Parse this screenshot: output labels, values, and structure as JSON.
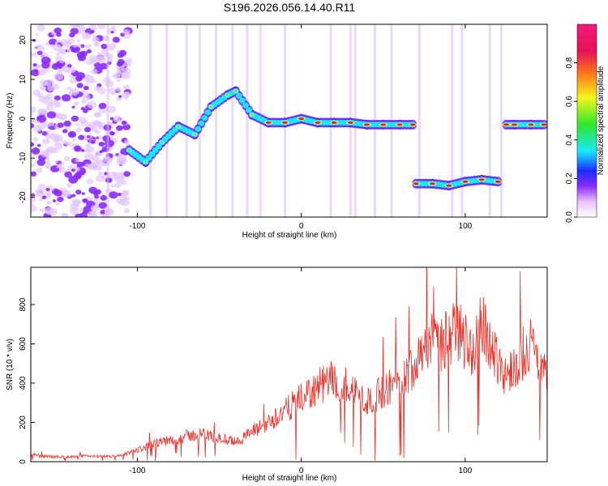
{
  "title": "S196.2026.056.14.40.R11",
  "colors": {
    "snr_line": "#e8322b",
    "colormap": [
      "#ffffff",
      "#e9c2ff",
      "#8a2bff",
      "#1a2cff",
      "#18e8ff",
      "#2fe82a",
      "#f5f51a",
      "#ff7a1a",
      "#e5125a",
      "#f01a7a"
    ]
  },
  "chart_data": [
    {
      "type": "heatmap",
      "panel": "spectrogram",
      "xlabel": "Height of straight line (km)",
      "ylabel": "Frequency (Hz)",
      "xlim": [
        -165,
        150
      ],
      "ylim": [
        -25,
        24
      ],
      "xticks": [
        -100,
        0,
        100
      ],
      "yticks": [
        -20,
        -10,
        0,
        10,
        20
      ],
      "colorbar": {
        "label": "Normalized spectral amplitude",
        "range": [
          0,
          1
        ],
        "ticks": [
          0.0,
          0.2,
          0.4,
          0.6,
          0.8
        ]
      },
      "ridge": {
        "description_points_x": [
          -105,
          -95,
          -85,
          -75,
          -65,
          -55,
          -45,
          -40,
          -30,
          -20,
          -10,
          0,
          10,
          20,
          30,
          40,
          50,
          60,
          68,
          70,
          80,
          90,
          100,
          110,
          120,
          125,
          130,
          140,
          148
        ],
        "frequency_y": [
          -8,
          -11,
          -6,
          -2,
          -4,
          3,
          6,
          7,
          1,
          -1,
          -1,
          0,
          -1,
          -1,
          -1,
          -1.5,
          -1.5,
          -1.5,
          -1.5,
          -16.5,
          -16.5,
          -17,
          -16,
          -15.5,
          -16,
          -1.5,
          -1.5,
          -1.5,
          -1.5
        ]
      }
    },
    {
      "type": "line",
      "panel": "snr",
      "xlabel": "Height of straight line (km)",
      "ylabel": "SNR (10 * v/v)",
      "xlim": [
        -165,
        150
      ],
      "ylim": [
        0,
        990
      ],
      "xticks": [
        -100,
        0,
        100
      ],
      "yticks": [
        0,
        200,
        400,
        600,
        800
      ],
      "series": [
        {
          "x": [
            -165,
            -160,
            -150,
            -140,
            -130,
            -120,
            -110,
            -100,
            -90,
            -80,
            -70,
            -60,
            -50,
            -40,
            -30,
            -20,
            -10,
            0,
            10,
            20,
            30,
            40,
            50,
            60,
            68,
            70,
            75,
            80,
            85,
            90,
            95,
            100,
            105,
            110,
            115,
            120,
            125,
            130,
            135,
            140,
            145,
            150
          ],
          "y": [
            40,
            30,
            25,
            25,
            30,
            25,
            30,
            60,
            90,
            110,
            130,
            140,
            120,
            100,
            150,
            200,
            260,
            320,
            380,
            420,
            380,
            300,
            360,
            420,
            480,
            550,
            600,
            620,
            580,
            640,
            680,
            620,
            560,
            700,
            600,
            520,
            440,
            480,
            560,
            600,
            500,
            420
          ]
        }
      ]
    }
  ]
}
